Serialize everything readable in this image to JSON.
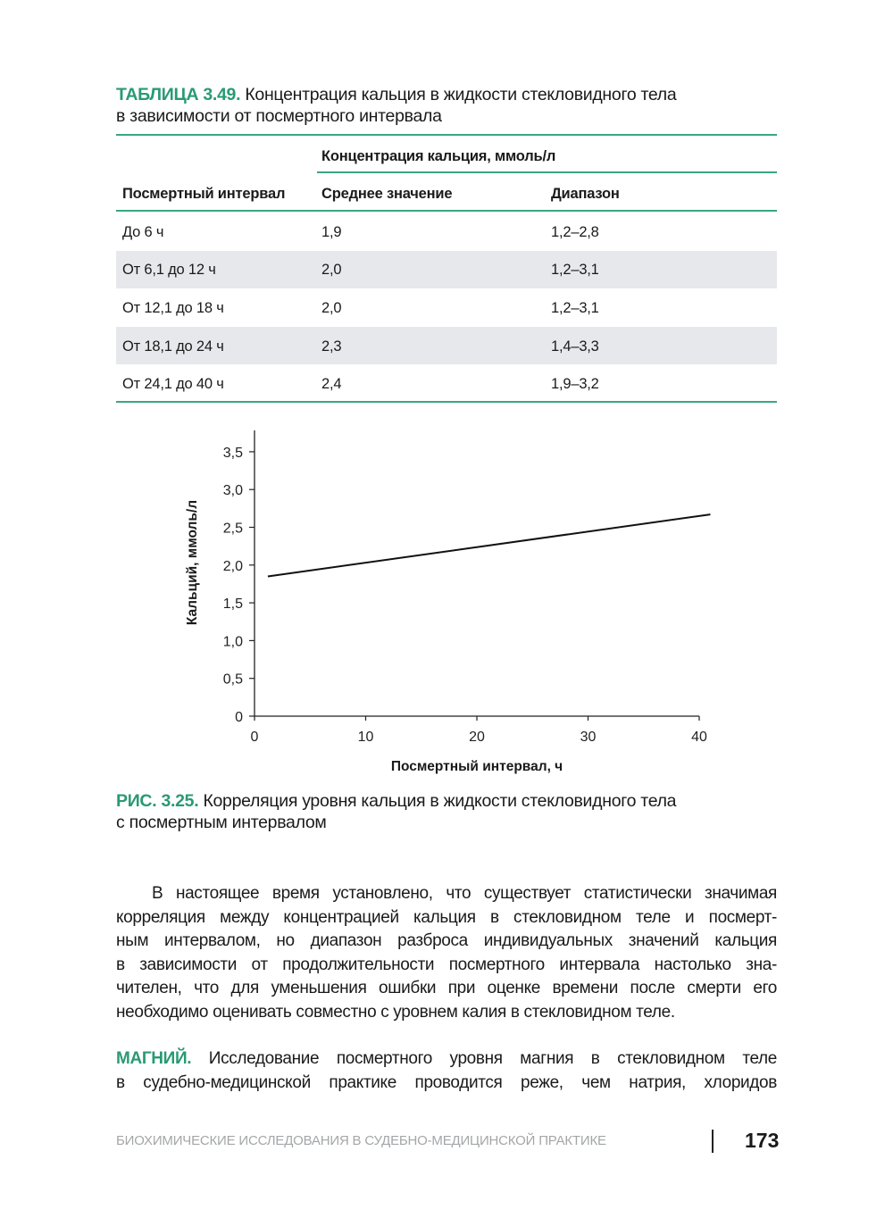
{
  "table": {
    "label": "ТАБЛИЦА 3.49.",
    "title_lines": [
      "Концентрация кальция в жидкости стекловидного тела",
      "в зависимости от посмертного интервала"
    ],
    "group_header": "Концентрация кальция, ммоль/л",
    "columns": [
      "Посмертный интервал",
      "Среднее значение",
      "Диапазон"
    ],
    "rows": [
      [
        "До 6 ч",
        "1,9",
        "1,2–2,8"
      ],
      [
        "От 6,1 до 12 ч",
        "2,0",
        "1,2–3,1"
      ],
      [
        "От 12,1 до 18 ч",
        "2,0",
        "1,2–3,1"
      ],
      [
        "От 18,1 до 24 ч",
        "2,3",
        "1,4–3,3"
      ],
      [
        "От 24,1 до 40 ч",
        "2,4",
        "1,9–3,2"
      ]
    ]
  },
  "chart_data": {
    "type": "line",
    "xlabel": "Посмертный интервал, ч",
    "ylabel": "Кальций, ммоль/л",
    "xlim": [
      0,
      41
    ],
    "ylim": [
      0,
      3.7
    ],
    "x_ticks": [
      "0",
      "10",
      "20",
      "30",
      "40"
    ],
    "x_tick_values": [
      0,
      10,
      20,
      30,
      40
    ],
    "y_ticks": [
      "0",
      "0,5",
      "1,0",
      "1,5",
      "2,0",
      "2,5",
      "3,0",
      "3,5"
    ],
    "y_tick_values": [
      0,
      0.5,
      1.0,
      1.5,
      2.0,
      2.5,
      3.0,
      3.5
    ],
    "grid": false,
    "series": [
      {
        "x": [
          1.2,
          41
        ],
        "y": [
          1.85,
          2.67
        ],
        "color": "#111111"
      }
    ]
  },
  "figure": {
    "label": "РИС. 3.25.",
    "caption_lines": [
      "Корреляция уровня кальция в жидкости стекловидного тела",
      "с посмертным интервалом"
    ]
  },
  "body": {
    "paragraph_lines": [
      "В настоящее время установлено, что существует статистически значимая",
      "корреляция между концентрацией кальция в стекловидном теле и посмерт-",
      "ным интервалом, но диапазон разброса индивидуальных значений кальция",
      "в зависимости от продолжительности посмертного интервала настолько зна-",
      "чителен, что для уменьшения ошибки при оценке времени после смерти его",
      "необходимо оценивать совместно с уровнем калия в стекловидном теле."
    ],
    "magnesium_label": "МАГНИЙ.",
    "magnesium_lines": [
      "Исследование посмертного уровня магния в стекловидном теле",
      "в судебно-медицинской практике проводится реже, чем натрия, хлоридов"
    ]
  },
  "footer": {
    "running_title": "БИОХИМИЧЕСКИЕ ИССЛЕДОВАНИЯ В СУДЕБНО-МЕДИЦИНСКОЙ ПРАКТИКЕ",
    "page_number": "173"
  },
  "colors": {
    "accent": "#2a9a72",
    "row_shade": "#e6e8eb"
  }
}
